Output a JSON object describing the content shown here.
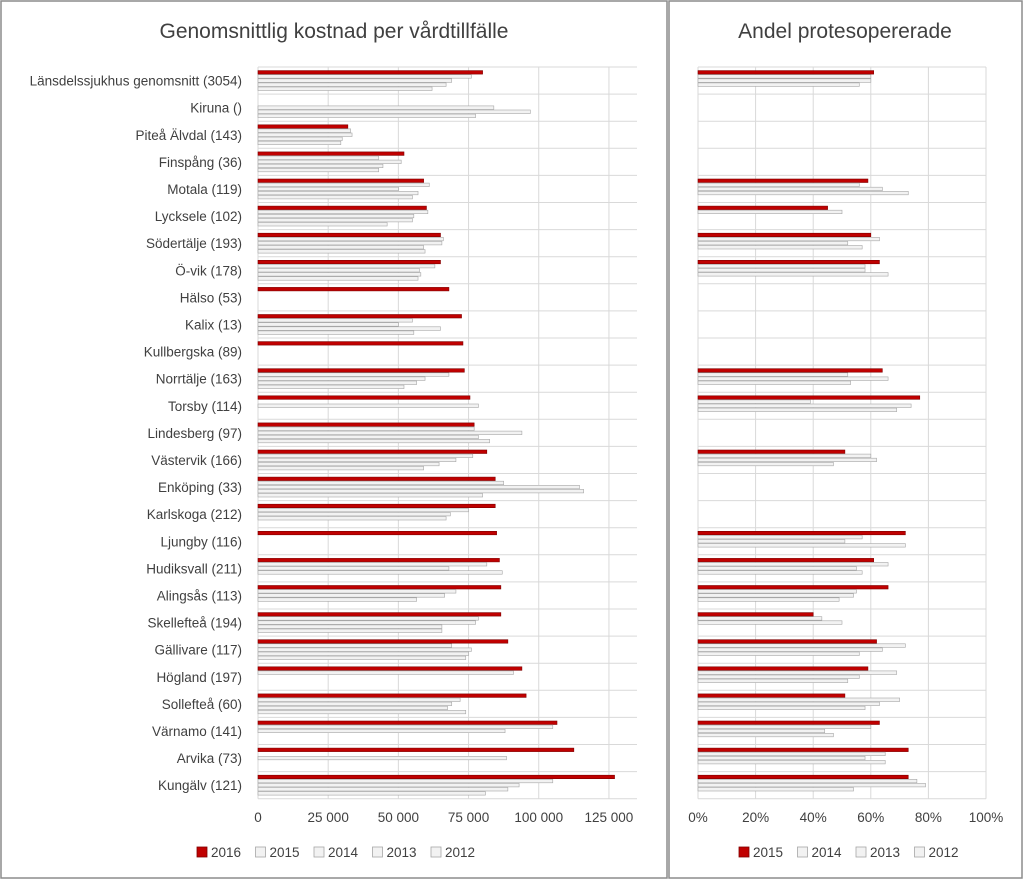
{
  "colors": {
    "2016": "#c00000",
    "2015_left": "#c00000",
    "prior": "#f2f2f2",
    "prior_stroke": "#a6a6a6",
    "highlight_stroke": "#7f0000"
  },
  "chart_data": [
    {
      "type": "bar",
      "orientation": "horizontal",
      "title": "Genomsnittlig kostnad per vårdtillfälle",
      "categories": [
        "Länsdelssjukhus genomsnitt (3054)",
        "Kiruna ()",
        "Piteå Älvdal (143)",
        "Finspång (36)",
        "Motala (119)",
        "Lycksele (102)",
        "Södertälje (193)",
        "Ö-vik (178)",
        "Hälso (53)",
        "Kalix (13)",
        "Kullbergska (89)",
        "Norrtälje (163)",
        "Torsby (114)",
        "Lindesberg (97)",
        "Västervik (166)",
        "Enköping (33)",
        "Karlskoga (212)",
        "Ljungby (116)",
        "Hudiksvall (211)",
        "Alingsås (113)",
        "Skellefteå (194)",
        "Gällivare (117)",
        "Högland (197)",
        "Sollefteå (60)",
        "Värnamo (141)",
        "Arvika (73)",
        "Kungälv (121)"
      ],
      "series": [
        {
          "name": "2016",
          "values": [
            80000,
            null,
            32000,
            52000,
            59000,
            60000,
            65000,
            65000,
            68000,
            72500,
            73000,
            73500,
            75500,
            77000,
            81500,
            84500,
            84500,
            85000,
            86000,
            86500,
            86500,
            89000,
            94000,
            95500,
            106500,
            112500,
            127000
          ]
        },
        {
          "name": "2015",
          "values": [
            76000,
            null,
            33000,
            43000,
            61000,
            60500,
            66000,
            63000,
            null,
            55000,
            null,
            68000,
            null,
            77000,
            76500,
            87500,
            75000,
            null,
            81500,
            70500,
            78500,
            69000,
            91000,
            72000,
            105000,
            null,
            105000
          ]
        },
        {
          "name": "2014",
          "values": [
            69000,
            84000,
            33500,
            51000,
            50000,
            55500,
            65500,
            57500,
            null,
            50000,
            null,
            59500,
            78500,
            94000,
            70500,
            114500,
            68500,
            null,
            68000,
            66500,
            77500,
            76000,
            null,
            69000,
            88000,
            88500,
            93000
          ]
        },
        {
          "name": "2013",
          "values": [
            67000,
            97000,
            30000,
            44500,
            57000,
            55000,
            59000,
            58000,
            null,
            65000,
            null,
            56500,
            null,
            78500,
            64500,
            116000,
            67000,
            null,
            87000,
            56500,
            65500,
            75000,
            null,
            67500,
            null,
            null,
            89000
          ]
        },
        {
          "name": "2012",
          "values": [
            62000,
            77500,
            29500,
            43000,
            55000,
            46000,
            59500,
            57000,
            null,
            55500,
            null,
            52000,
            null,
            82500,
            59000,
            80000,
            null,
            null,
            null,
            null,
            65500,
            74000,
            null,
            74000,
            null,
            null,
            81000
          ]
        }
      ],
      "xlim": [
        0,
        135000
      ],
      "x_ticks": [
        0,
        25000,
        50000,
        75000,
        100000,
        125000
      ],
      "x_tick_labels": [
        "0",
        "25 000",
        "50 000",
        "75 000",
        "100 000",
        "125 000"
      ],
      "grid": true,
      "legend": {
        "position": "bottom",
        "entries": [
          "2016",
          "2015",
          "2014",
          "2013",
          "2012"
        ]
      }
    },
    {
      "type": "bar",
      "orientation": "horizontal",
      "title": "Andel protesopererade",
      "categories": [
        "Länsdelssjukhus genomsnitt (3054)",
        "Kiruna ()",
        "Piteå Älvdal (143)",
        "Finspång (36)",
        "Motala (119)",
        "Lycksele (102)",
        "Södertälje (193)",
        "Ö-vik (178)",
        "Hälso (53)",
        "Kalix (13)",
        "Kullbergska (89)",
        "Norrtälje (163)",
        "Torsby (114)",
        "Lindesberg (97)",
        "Västervik (166)",
        "Enköping (33)",
        "Karlskoga (212)",
        "Ljungby (116)",
        "Hudiksvall (211)",
        "Alingsås (113)",
        "Skellefteå (194)",
        "Gällivare (117)",
        "Högland (197)",
        "Sollefteå (60)",
        "Värnamo (141)",
        "Arvika (73)",
        "Kungälv (121)"
      ],
      "series": [
        {
          "name": "2015",
          "values": [
            0.61,
            null,
            null,
            null,
            0.59,
            0.45,
            0.6,
            0.63,
            null,
            null,
            null,
            0.64,
            0.77,
            null,
            0.51,
            null,
            null,
            0.72,
            0.61,
            0.66,
            0.4,
            0.62,
            0.59,
            0.51,
            0.63,
            0.73,
            0.73
          ]
        },
        {
          "name": "2014",
          "values": [
            0.6,
            null,
            null,
            null,
            0.56,
            0.5,
            0.63,
            0.58,
            null,
            null,
            null,
            0.52,
            0.39,
            null,
            0.6,
            null,
            null,
            0.57,
            0.66,
            0.55,
            0.43,
            0.72,
            0.69,
            0.7,
            0.6,
            0.65,
            0.76
          ]
        },
        {
          "name": "2013",
          "values": [
            0.6,
            null,
            null,
            null,
            0.64,
            null,
            0.52,
            0.58,
            null,
            null,
            null,
            0.66,
            0.74,
            null,
            0.62,
            null,
            null,
            0.51,
            0.55,
            0.54,
            0.5,
            0.64,
            0.56,
            0.63,
            0.44,
            0.58,
            0.79
          ]
        },
        {
          "name": "2012",
          "values": [
            0.56,
            null,
            null,
            null,
            0.73,
            null,
            0.57,
            0.66,
            null,
            null,
            null,
            0.53,
            0.69,
            null,
            0.47,
            null,
            null,
            0.72,
            0.57,
            0.49,
            null,
            0.56,
            0.52,
            0.58,
            0.47,
            0.65,
            0.54
          ]
        }
      ],
      "xlim": [
        0,
        1
      ],
      "x_ticks": [
        0,
        0.2,
        0.4,
        0.6,
        0.8,
        1.0
      ],
      "x_tick_labels": [
        "0%",
        "20%",
        "40%",
        "60%",
        "80%",
        "100%"
      ],
      "grid": true,
      "legend": {
        "position": "bottom",
        "entries": [
          "2015",
          "2014",
          "2013",
          "2012"
        ]
      }
    }
  ]
}
